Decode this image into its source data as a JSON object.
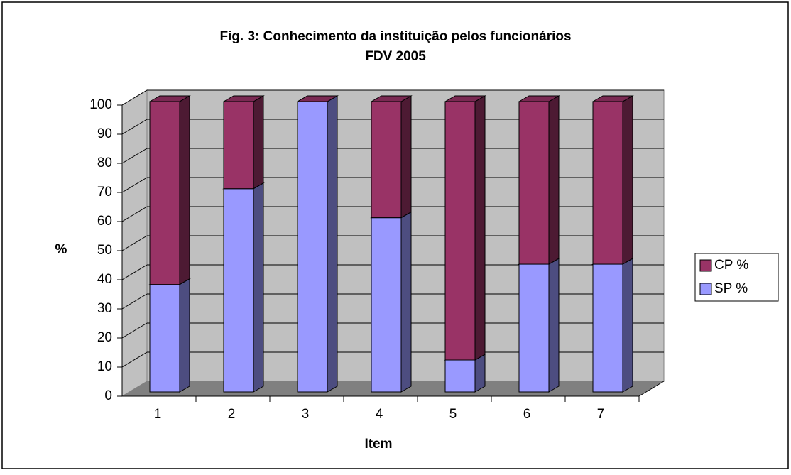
{
  "chart_data": {
    "type": "bar3d_stacked",
    "title": "Fig. 3: Conhecimento da instituição pelos funcionários",
    "subtitle": "FDV 2005",
    "x_label": "Item",
    "y_label": "%",
    "categories": [
      "1",
      "2",
      "3",
      "4",
      "5",
      "6",
      "7"
    ],
    "series": [
      {
        "name": "SP %",
        "color": "#9999ff",
        "values": [
          37,
          70,
          100,
          60,
          11,
          44,
          44
        ]
      },
      {
        "name": "CP %",
        "color": "#993366",
        "values": [
          63,
          30,
          0,
          40,
          89,
          56,
          56
        ]
      }
    ],
    "ylim": [
      0,
      100
    ],
    "yticks": [
      0,
      10,
      20,
      30,
      40,
      50,
      60,
      70,
      80,
      90,
      100
    ],
    "grid": true,
    "stacked": true,
    "legend": "right"
  }
}
